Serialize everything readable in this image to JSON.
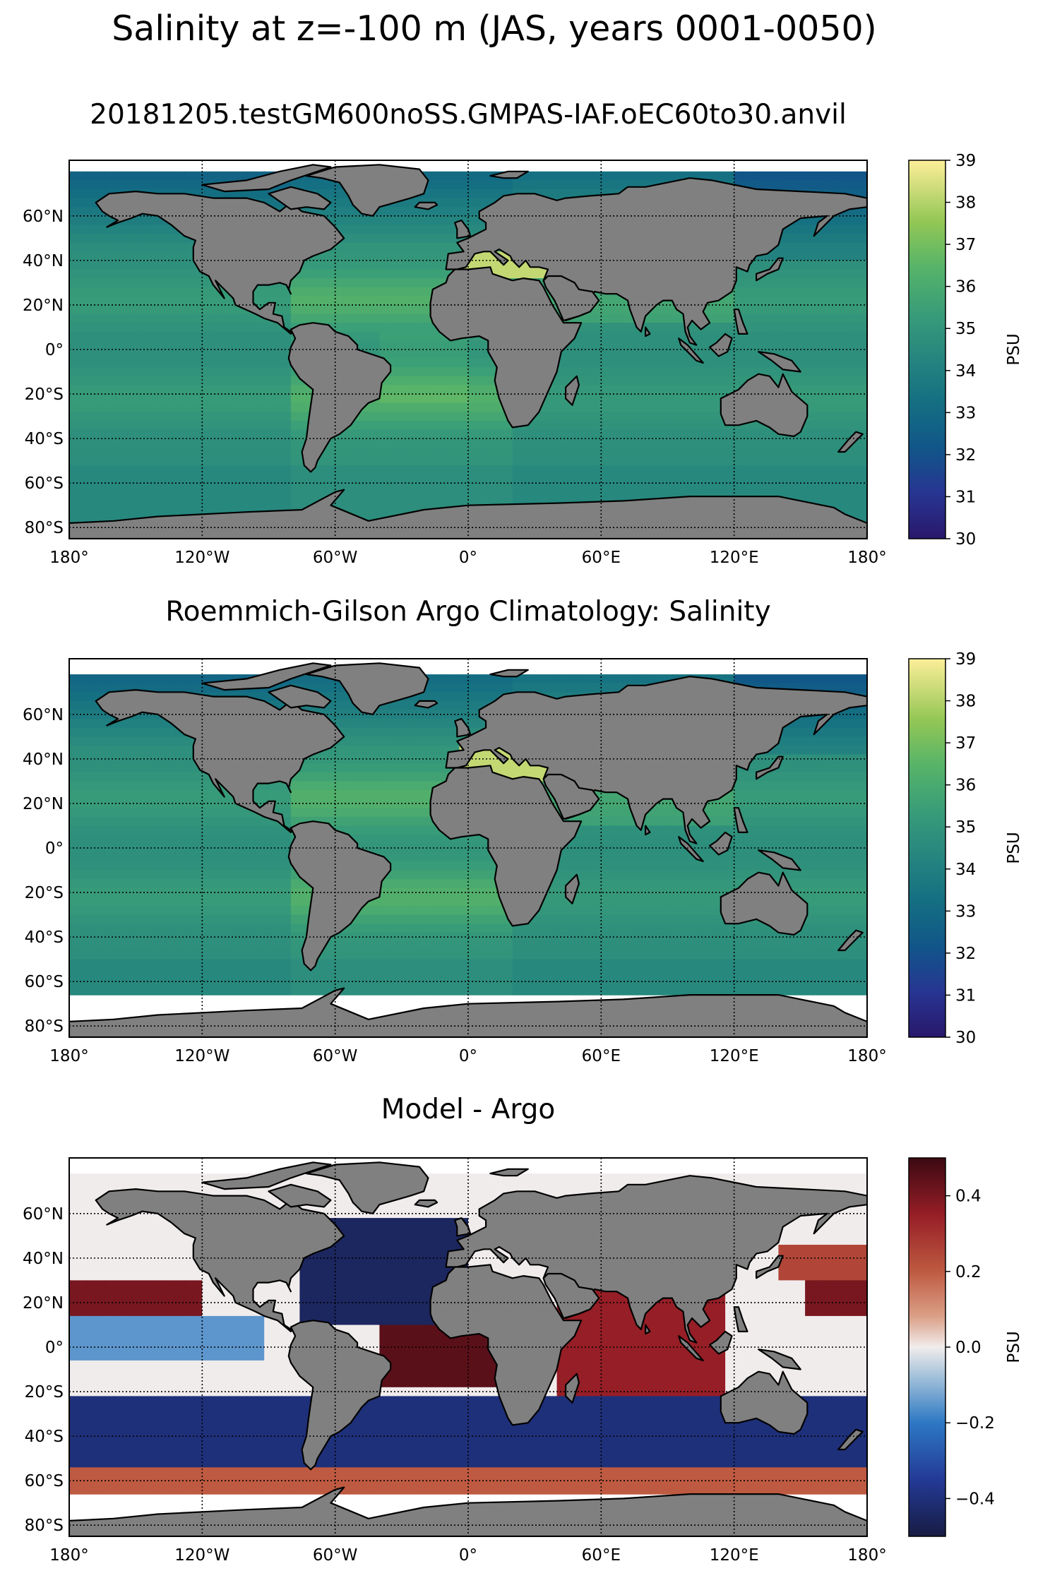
{
  "figure": {
    "suptitle": "Salinity at z=-100 m (JAS, years 0001-0050)"
  },
  "axis_ticks": {
    "lon": [
      "180°",
      "120°W",
      "60°W",
      "0°",
      "60°E",
      "120°E",
      "180°"
    ],
    "lat": [
      "60°N",
      "40°N",
      "20°N",
      "0°",
      "20°S",
      "40°S",
      "60°S",
      "80°S"
    ]
  },
  "colors": {
    "land": "#808080",
    "missing": "#ffffff",
    "coast": "#000000"
  },
  "panels": [
    {
      "title": "20181205.testGM600noSS.GMPAS-IAF.oEC60to30.anvil",
      "colorbar_label": "PSU",
      "colormap": "haline",
      "colorbar_ticks": [
        "30",
        "31",
        "32",
        "33",
        "34",
        "35",
        "36",
        "37",
        "38",
        "39"
      ],
      "vmin": 30,
      "vmax": 39
    },
    {
      "title": "Roemmich-Gilson Argo Climatology: Salinity",
      "colorbar_label": "PSU",
      "colormap": "haline",
      "colorbar_ticks": [
        "30",
        "31",
        "32",
        "33",
        "34",
        "35",
        "36",
        "37",
        "38",
        "39"
      ],
      "vmin": 30,
      "vmax": 39
    },
    {
      "title": "Model - Argo",
      "colorbar_label": "PSU",
      "colormap": "balance",
      "colorbar_ticks": [
        "−0.4",
        "−0.2",
        "0.0",
        "0.2",
        "0.4"
      ],
      "vmin": -0.5,
      "vmax": 0.5
    }
  ],
  "chart_data": [
    {
      "type": "heatmap",
      "title": "20181205.testGM600noSS.GMPAS-IAF.oEC60to30.anvil",
      "projection": "plate carree",
      "variable": "salinity",
      "units": "PSU",
      "color_range": [
        30,
        39
      ],
      "xlim": [
        -180,
        180
      ],
      "ylim": [
        -85,
        85
      ],
      "grid": true
    },
    {
      "type": "heatmap",
      "title": "Roemmich-Gilson Argo Climatology: Salinity",
      "projection": "plate carree",
      "variable": "salinity",
      "units": "PSU",
      "color_range": [
        30,
        39
      ],
      "xlim": [
        -180,
        180
      ],
      "ylim": [
        -85,
        85
      ],
      "grid": true
    },
    {
      "type": "heatmap",
      "title": "Model - Argo",
      "projection": "plate carree",
      "variable": "salinity difference",
      "units": "PSU",
      "color_range": [
        -0.5,
        0.5
      ],
      "xlim": [
        -180,
        180
      ],
      "ylim": [
        -85,
        85
      ],
      "grid": true
    }
  ]
}
